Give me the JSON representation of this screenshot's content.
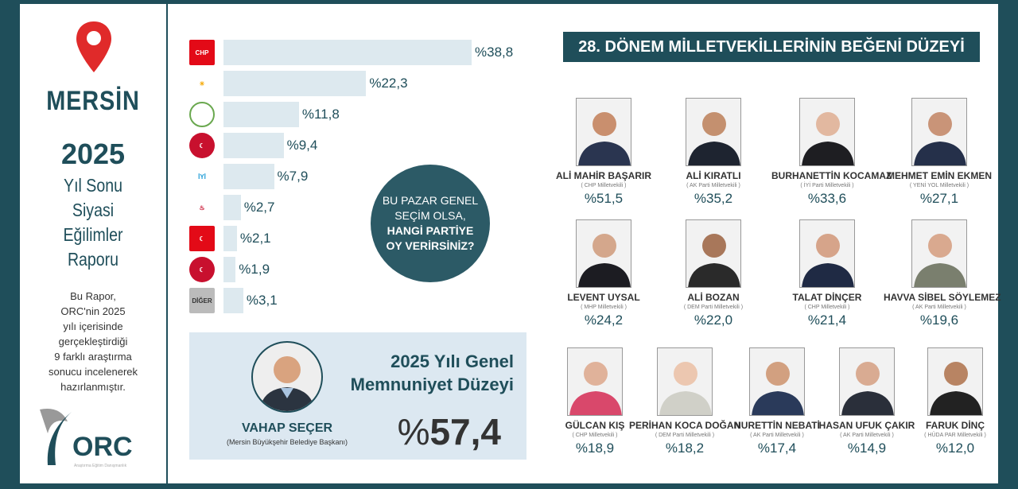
{
  "sidebar": {
    "city": "MERSİN",
    "year": "2025",
    "title_lines": [
      "Yıl Sonu",
      "Siyasi",
      "Eğilimler",
      "Raporu"
    ],
    "description": [
      "Bu Rapor,",
      "ORC'nin 2025",
      "yılı içerisinde",
      "gerçekleştirdiği",
      "9 farklı araştırma",
      "sonucu incelenerek",
      "hazırlanmıştır."
    ],
    "logo": "ORC",
    "logo_sub": "Araştırma Eğitim Danışmanlık",
    "pin_color": "#e02a2a"
  },
  "chart_data": {
    "type": "bar",
    "orientation": "horizontal",
    "categories": [
      "CHP",
      "AK PARTİ",
      "DEM PARTİ",
      "MHP",
      "İYİ PARTİ",
      "ZAFER PARTİSİ",
      "SAADET",
      "YENİDEN REFAH",
      "DİĞER"
    ],
    "values": [
      38.8,
      22.3,
      11.8,
      9.4,
      7.9,
      2.7,
      2.1,
      1.9,
      3.1
    ],
    "labels": [
      "38,8",
      "22,3",
      "11,8",
      "9,4",
      "7,9",
      "2,7",
      "2,1",
      "1,9",
      "3,1"
    ],
    "prefix": "%",
    "bar_color": "#dde9ef",
    "logo_colors": [
      "#e30a17",
      "#f5a800",
      "#6aa84f",
      "#c8102e",
      "#1a9ad6",
      "#c8102e",
      "#e30a17",
      "#c8102e",
      "#bbbbbb"
    ]
  },
  "question": {
    "line1": "BU PAZAR GENEL",
    "line2": "SEÇİM OLSA,",
    "line3": "HANGİ PARTİYE",
    "line4": "OY VERİRSİNİZ?"
  },
  "mayor": {
    "name": "VAHAP SEÇER",
    "role": "(Mersin Büyükşehir Belediye Başkanı)",
    "satisfaction_title_1": "2025 Yılı Genel",
    "satisfaction_title_2": "Memnuniyet Düzeyi",
    "prefix": "%",
    "value": "57,4"
  },
  "mps": {
    "title": "28. DÖNEM MİLLETVEKİLLERİNİN BEĞENİ DÜZEYİ",
    "items": [
      {
        "name": "ALİ MAHİR BAŞARIR",
        "party": "( CHP Milletvekili )",
        "value": "51,5"
      },
      {
        "name": "ALİ KIRATLI",
        "party": "( AK Parti Milletvekili )",
        "value": "35,2"
      },
      {
        "name": "BURHANETTİN KOCAMAZ",
        "party": "( İYİ Parti Milletvekili )",
        "value": "33,6"
      },
      {
        "name": "MEHMET EMİN EKMEN",
        "party": "( YENİ YOL Milletvekili )",
        "value": "27,1"
      },
      {
        "name": "LEVENT UYSAL",
        "party": "( MHP Milletvekili )",
        "value": "24,2"
      },
      {
        "name": "ALİ BOZAN",
        "party": "( DEM Parti Milletvekili )",
        "value": "22,0"
      },
      {
        "name": "TALAT DİNÇER",
        "party": "( CHP Milletvekili )",
        "value": "21,4"
      },
      {
        "name": "HAVVA SİBEL SÖYLEMEZ",
        "party": "( AK Parti Milletvekili )",
        "value": "19,6"
      },
      {
        "name": "GÜLCAN KIŞ",
        "party": "( CHP Milletvekili )",
        "value": "18,9"
      },
      {
        "name": "PERİHAN KOCA DOĞAN",
        "party": "( DEM Parti Milletvekili )",
        "value": "18,2"
      },
      {
        "name": "NURETTİN NEBATİ",
        "party": "( AK Parti Milletvekili )",
        "value": "17,4"
      },
      {
        "name": "HASAN UFUK ÇAKIR",
        "party": "( AK Parti Milletvekili )",
        "value": "14,9"
      },
      {
        "name": "FARUK DİNÇ",
        "party": "( HÜDA PAR Milletvekili )",
        "value": "12,0"
      }
    ]
  }
}
